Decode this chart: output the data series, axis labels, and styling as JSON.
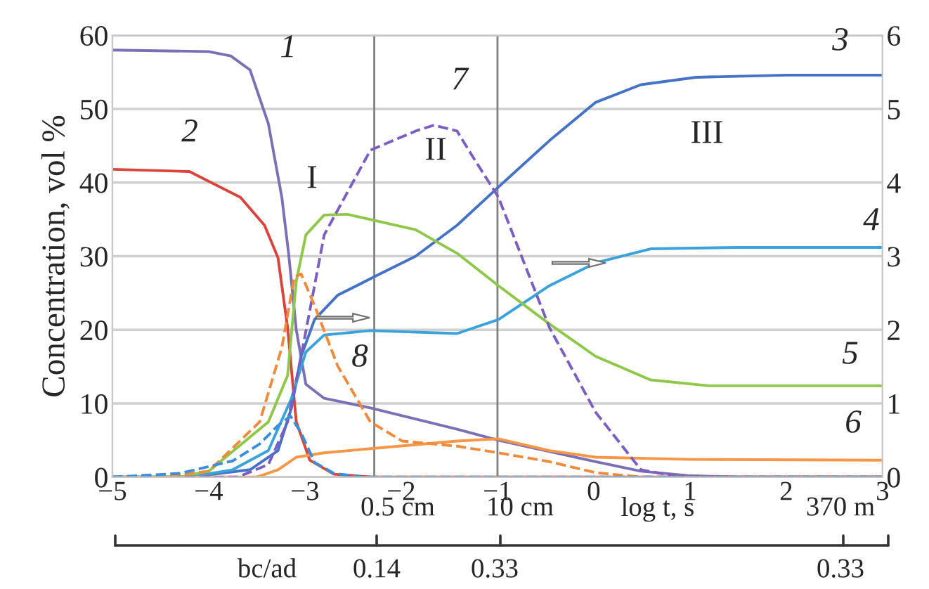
{
  "chart_data": {
    "type": "line",
    "ylabel": "Concentration, vol %",
    "xlabel": "log t, s",
    "xlim": [
      -5,
      3
    ],
    "xticks": [
      {
        "value": -5,
        "label": "−5"
      },
      {
        "value": -4,
        "label": "−4"
      },
      {
        "value": -3,
        "label": "−3"
      },
      {
        "value": -2,
        "label": "−2"
      },
      {
        "value": -1,
        "label": "−1"
      },
      0,
      1,
      2,
      3
    ],
    "ylim": [
      0,
      60
    ],
    "yticks": [
      0,
      10,
      20,
      30,
      40,
      50,
      60
    ],
    "y2lim": [
      0,
      6
    ],
    "y2ticks": [
      0,
      1,
      2,
      3,
      4,
      5,
      6
    ],
    "grid": "y",
    "marker": "none",
    "ref_lines": [
      {
        "axis": "x",
        "value": -2.28,
        "color": "#808080"
      },
      {
        "axis": "x",
        "value": -1.0,
        "color": "#808080"
      }
    ],
    "series": [
      {
        "color": "#7b6fb5",
        "line_style": "solid",
        "x": [
          -5,
          -4,
          -3.77,
          -3.57,
          -3.38,
          -3.24,
          -3.17,
          -3.09,
          -2.99,
          -2.8,
          -2.32,
          -1.42,
          -0.99,
          0.02,
          0.49,
          0.98,
          1.5,
          3
        ],
        "values": [
          58,
          57.8,
          57.2,
          55.3,
          48,
          38,
          30.4,
          20,
          12.6,
          10.7,
          9.4,
          6.5,
          5,
          2.1,
          0.8,
          0.2,
          0,
          0
        ]
      },
      {
        "color": "#d9453b",
        "line_style": "solid",
        "x": [
          -5,
          -4.2,
          -3.67,
          -3.42,
          -3.28,
          -3.18,
          -3.09,
          -2.95,
          -2.7,
          -2.3,
          3
        ],
        "values": [
          41.8,
          41.5,
          38,
          34.2,
          29.8,
          20.3,
          7.5,
          2.3,
          0.4,
          0,
          0
        ]
      },
      {
        "color": "#4472c4",
        "line_style": "solid",
        "x": [
          -5,
          -4.2,
          -3.57,
          -3.28,
          -3.14,
          -3.04,
          -2.9,
          -2.66,
          -2.28,
          -1.85,
          -1.42,
          -0.99,
          -0.46,
          0.02,
          0.49,
          1.06,
          2,
          3
        ],
        "values": [
          0,
          0,
          1,
          3.6,
          9.4,
          16.4,
          21.4,
          24.7,
          27.2,
          30,
          34.2,
          39.4,
          45.7,
          50.9,
          53.3,
          54.3,
          54.6,
          54.6
        ]
      },
      {
        "color": "#3ba3d9",
        "line_style": "solid",
        "x": [
          -5,
          -4.2,
          -3.75,
          -3.38,
          -3.14,
          -2.99,
          -2.8,
          -2.32,
          -1.42,
          -0.99,
          -0.46,
          0.02,
          0.59,
          1.5,
          3
        ],
        "values": [
          0,
          0,
          1,
          3.6,
          10.7,
          17,
          19.3,
          19.9,
          19.5,
          21.4,
          26,
          29.1,
          31,
          31.2,
          31.2
        ]
      },
      {
        "color": "#8fc74a",
        "line_style": "solid",
        "x": [
          -5,
          -4.3,
          -4,
          -3.38,
          -3.18,
          -3.09,
          -2.99,
          -2.8,
          -2.56,
          -1.85,
          -1.42,
          -0.99,
          -0.46,
          0.02,
          0.59,
          1.2,
          3
        ],
        "values": [
          0,
          0,
          0.8,
          7.5,
          13.8,
          26.6,
          32.9,
          35.6,
          35.7,
          33.6,
          30.4,
          26,
          20.8,
          16.4,
          13.2,
          12.4,
          12.4
        ]
      },
      {
        "color": "#f79646",
        "line_style": "solid",
        "x": [
          -5,
          -3.5,
          -3.28,
          -3.09,
          -2.8,
          -1.42,
          -0.99,
          -0.46,
          0.02,
          1,
          3
        ],
        "values": [
          0,
          0,
          1,
          2.7,
          3.3,
          4.9,
          5.2,
          3.6,
          2.7,
          2.4,
          2.3
        ]
      },
      {
        "color": "#7b5fc0",
        "line_style": "dashed",
        "axis": "y2",
        "x": [
          -5,
          -3.7,
          -3.38,
          -3.18,
          -3.04,
          -2.8,
          -2.32,
          -1.85,
          -1.66,
          -1.42,
          -1.27,
          -0.99,
          -0.46,
          0.02,
          0.49,
          0.9,
          3
        ],
        "values": [
          0,
          0,
          0.17,
          0.75,
          1.64,
          3.29,
          4.44,
          4.7,
          4.78,
          4.7,
          4.38,
          3.8,
          2.03,
          0.88,
          0.1,
          0,
          0
        ]
      },
      {
        "color": "#f08a3c",
        "line_style": "dashed",
        "axis": "y2",
        "x": [
          -5,
          -4.5,
          -4,
          -3.47,
          -3.24,
          -3.11,
          -3.04,
          -2.9,
          -2.66,
          -2.32,
          -1.99,
          -1.42,
          -0.99,
          -0.46,
          0.02,
          0.5,
          3
        ],
        "values": [
          0,
          0,
          0.08,
          0.75,
          1.76,
          2.72,
          2.76,
          2.33,
          1.51,
          0.75,
          0.49,
          0.42,
          0.33,
          0.21,
          0.06,
          0,
          0
        ]
      },
      {
        "color": "#3b8fd9",
        "line_style": "dashed",
        "axis": "y2",
        "x": [
          -5,
          -4.3,
          -3.75,
          -3.47,
          -3.28,
          -3.15,
          -3.04,
          -2.9,
          -2.7,
          -2.4,
          3
        ],
        "values": [
          0,
          0.05,
          0.22,
          0.45,
          0.7,
          0.83,
          0.6,
          0.2,
          0.05,
          0,
          0
        ]
      }
    ],
    "annotations": [
      "1",
      "2",
      "3",
      "4",
      "5",
      "6",
      "7",
      "8",
      "I",
      "II",
      "III",
      "0.5 cm",
      "10 cm",
      "370 m",
      "bc/ad",
      "0.14",
      "0.33",
      "0.33"
    ]
  }
}
